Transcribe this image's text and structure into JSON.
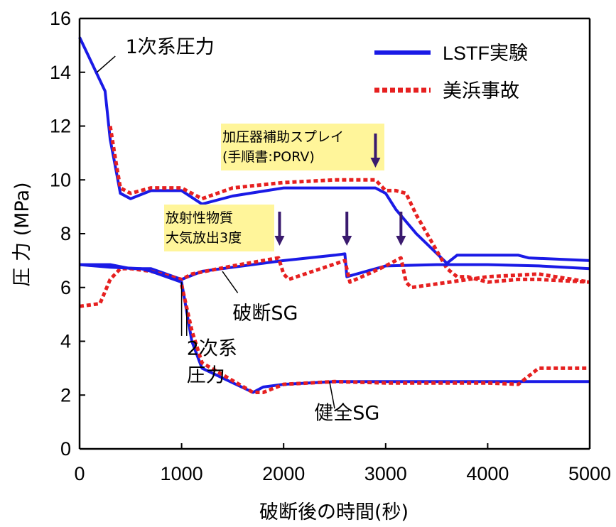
{
  "chart_data": {
    "type": "line",
    "xlabel": "破断後の時間(秒)",
    "ylabel": "圧 力 (MPa)",
    "xlim": [
      0,
      5000
    ],
    "ylim": [
      0,
      16
    ],
    "xticks": [
      0,
      1000,
      2000,
      3000,
      4000,
      5000
    ],
    "yticks": [
      0,
      2,
      4,
      6,
      8,
      10,
      12,
      14,
      16
    ],
    "grid": false,
    "legend_position": "top-right",
    "legend": [
      {
        "label": "LSTF実験",
        "color": "#1a1ae6",
        "style": "solid"
      },
      {
        "label": "美浜事故",
        "color": "#e62020",
        "style": "dotted"
      }
    ],
    "series": [
      {
        "name": "LSTF実験",
        "group": "1次系圧力",
        "x": [
          0,
          100,
          250,
          300,
          350,
          400,
          500,
          700,
          1000,
          1200,
          1500,
          2000,
          2500,
          2900,
          3000,
          3100,
          3300,
          3600,
          3700,
          4000,
          4300,
          4400,
          5000
        ],
        "values": [
          15.3,
          14.5,
          13.3,
          11.5,
          10.5,
          9.5,
          9.3,
          9.6,
          9.6,
          9.1,
          9.4,
          9.7,
          9.7,
          9.7,
          9.5,
          8.9,
          8.0,
          6.9,
          7.2,
          7.2,
          7.2,
          7.1,
          7.0
        ]
      },
      {
        "name": "美浜事故",
        "group": "1次系圧力",
        "x": [
          300,
          350,
          400,
          500,
          700,
          1000,
          1200,
          1500,
          2000,
          2500,
          2900,
          3000,
          3100,
          3200,
          3300,
          3600,
          3700,
          3800,
          4000,
          4300,
          4500,
          5000
        ],
        "values": [
          12.0,
          10.8,
          9.7,
          9.5,
          9.7,
          9.7,
          9.3,
          9.7,
          9.9,
          10.0,
          10.0,
          9.6,
          9.6,
          9.5,
          8.7,
          6.7,
          6.4,
          6.4,
          6.2,
          6.3,
          6.3,
          6.2
        ]
      },
      {
        "name": "LSTF実験",
        "group": "破断SG",
        "x": [
          0,
          300,
          500,
          700,
          1000,
          1200,
          1500,
          2000,
          2500,
          2600,
          2620,
          3000,
          3500,
          4000,
          4500,
          5000
        ],
        "values": [
          6.85,
          6.85,
          6.7,
          6.7,
          6.3,
          6.6,
          6.75,
          7.0,
          7.2,
          7.25,
          6.4,
          6.8,
          6.85,
          6.85,
          6.8,
          6.7
        ]
      },
      {
        "name": "美浜事故",
        "group": "破断SG",
        "x": [
          0,
          200,
          300,
          400,
          500,
          700,
          1000,
          1100,
          1500,
          1950,
          2000,
          2050,
          2600,
          2650,
          3000,
          3150,
          3200,
          3250,
          4000,
          4500,
          5000
        ],
        "values": [
          5.3,
          5.4,
          6.3,
          6.7,
          6.7,
          6.6,
          6.3,
          6.5,
          6.8,
          7.1,
          6.5,
          6.3,
          7.0,
          6.2,
          6.8,
          7.1,
          6.2,
          6.0,
          6.4,
          6.5,
          6.2
        ]
      },
      {
        "name": "LSTF実験",
        "group": "健全SG",
        "x": [
          0,
          300,
          600,
          700,
          1000,
          1100,
          1200,
          1700,
          1800,
          2000,
          2500,
          3000,
          4000,
          5000
        ],
        "values": [
          6.85,
          6.75,
          6.7,
          6.6,
          6.2,
          4.0,
          3.0,
          2.1,
          2.3,
          2.4,
          2.5,
          2.5,
          2.5,
          2.5
        ]
      },
      {
        "name": "美浜事故",
        "group": "健全SG",
        "x": [
          1000,
          1100,
          1200,
          1700,
          1800,
          2000,
          2500,
          3000,
          4000,
          4300,
          4500,
          5000
        ],
        "values": [
          6.1,
          4.4,
          3.2,
          2.1,
          2.1,
          2.4,
          2.5,
          2.45,
          2.45,
          2.4,
          3.0,
          3.0
        ]
      }
    ],
    "annotations": [
      {
        "text": "1次系圧力",
        "x": 450,
        "y": 14.7
      },
      {
        "text": "2次系",
        "x": 1050,
        "y": 3.5
      },
      {
        "text": "圧力",
        "x": 1050,
        "y": 2.5
      },
      {
        "text": "破断SG",
        "x": 1500,
        "y": 4.8
      },
      {
        "text": "健全SG",
        "x": 2300,
        "y": 1.1
      }
    ],
    "callouts": [
      {
        "lines": [
          "加圧器補助スプレイ",
          "(手順書:PORV)"
        ],
        "arrows_x": [
          2900
        ]
      },
      {
        "lines": [
          "放射性物質",
          "大気放出3度"
        ],
        "arrows_x": [
          1960,
          2620,
          3150
        ]
      }
    ]
  }
}
